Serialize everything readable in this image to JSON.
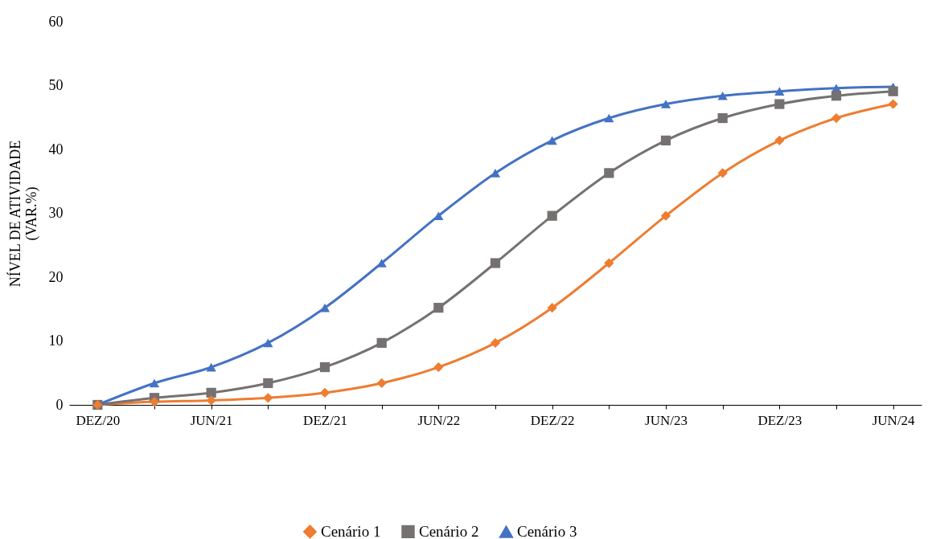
{
  "chart_data": {
    "type": "line",
    "ylabel": "NÍVEL DE ATIVIDADE\n(VAR.%)",
    "categories": [
      "DEZ/20",
      null,
      "JUN/21",
      null,
      "DEZ/21",
      null,
      "JUN/22",
      null,
      "DEZ/22",
      null,
      "JUN/23",
      null,
      "DEZ/23",
      null,
      "JUN/24"
    ],
    "series": [
      {
        "name": "Cenário 1",
        "color": "#ed7d31",
        "marker": "diamond",
        "values": [
          0,
          0.5,
          0.7,
          1.1,
          1.9,
          3.4,
          5.9,
          9.7,
          15.2,
          22.2,
          29.6,
          36.3,
          41.4,
          44.9,
          47.1
        ]
      },
      {
        "name": "Cenário 2",
        "color": "#767171",
        "marker": "square",
        "values": [
          0,
          1.1,
          1.9,
          3.4,
          5.9,
          9.7,
          15.2,
          22.2,
          29.6,
          36.3,
          41.4,
          44.9,
          47.1,
          48.4,
          49.1
        ]
      },
      {
        "name": "Cenário 3",
        "color": "#4472c4",
        "marker": "triangle",
        "values": [
          0,
          3.4,
          5.9,
          9.7,
          15.2,
          22.2,
          29.6,
          36.3,
          41.4,
          44.9,
          47.1,
          48.4,
          49.1,
          49.6,
          49.8
        ]
      }
    ],
    "ylim": [
      0,
      60
    ],
    "yticks": [
      0,
      10,
      20,
      30,
      40,
      50,
      60
    ],
    "grid": false,
    "legend": "bottom",
    "line_style": "solid"
  }
}
